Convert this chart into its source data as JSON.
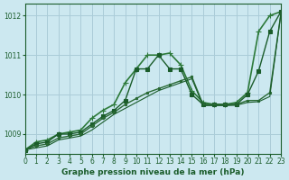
{
  "title": "Graphe pression niveau de la mer (hPa)",
  "background_color": "#cce8f0",
  "grid_color": "#aaccd8",
  "line_color_main": "#1a5c2a",
  "xlim": [
    0,
    23
  ],
  "ylim": [
    1008.5,
    1012.3
  ],
  "yticks": [
    1009,
    1010,
    1011,
    1012
  ],
  "xticks": [
    0,
    1,
    2,
    3,
    4,
    5,
    6,
    7,
    8,
    9,
    10,
    11,
    12,
    13,
    14,
    15,
    16,
    17,
    18,
    19,
    20,
    21,
    22,
    23
  ],
  "series": [
    {
      "x": [
        0,
        1,
        2,
        3,
        4,
        5,
        6,
        7,
        8,
        9,
        10,
        11,
        12,
        13,
        14,
        15,
        16,
        17,
        18,
        19,
        20,
        21,
        22,
        23
      ],
      "y": [
        1008.6,
        1008.8,
        1008.85,
        1009.0,
        1009.05,
        1009.1,
        1009.4,
        1009.6,
        1009.75,
        1010.3,
        1010.65,
        1011.0,
        1011.0,
        1011.05,
        1010.75,
        1010.1,
        1009.8,
        1009.75,
        1009.75,
        1009.8,
        1010.05,
        1011.6,
        1012.0,
        1012.1
      ],
      "color": "#2d7a3a",
      "linewidth": 1.2,
      "marker": "+",
      "markersize": 5
    },
    {
      "x": [
        0,
        1,
        2,
        3,
        4,
        5,
        6,
        7,
        8,
        9,
        10,
        11,
        12,
        13,
        14,
        15,
        16,
        17,
        18,
        19,
        20,
        21,
        22,
        23
      ],
      "y": [
        1008.6,
        1008.75,
        1008.8,
        1009.0,
        1009.0,
        1009.05,
        1009.25,
        1009.45,
        1009.6,
        1009.85,
        1010.65,
        1010.65,
        1011.0,
        1010.65,
        1010.65,
        1010.0,
        1009.75,
        1009.75,
        1009.75,
        1009.75,
        1010.0,
        1010.6,
        1011.6,
        1012.1
      ],
      "color": "#1a5c2a",
      "linewidth": 1.0,
      "marker": "s",
      "markersize": 2.5
    },
    {
      "x": [
        0,
        1,
        2,
        3,
        4,
        5,
        6,
        7,
        8,
        9,
        10,
        11,
        12,
        13,
        14,
        15,
        16,
        17,
        18,
        19,
        20,
        21,
        22,
        23
      ],
      "y": [
        1008.6,
        1008.7,
        1008.75,
        1008.9,
        1008.95,
        1009.0,
        1009.2,
        1009.4,
        1009.55,
        1009.75,
        1009.9,
        1010.05,
        1010.15,
        1010.25,
        1010.35,
        1010.45,
        1009.75,
        1009.75,
        1009.75,
        1009.75,
        1009.85,
        1009.85,
        1010.05,
        1012.05
      ],
      "color": "#2a6a35",
      "linewidth": 1.0,
      "marker": "s",
      "markersize": 2.0
    },
    {
      "x": [
        0,
        1,
        2,
        3,
        4,
        5,
        6,
        7,
        8,
        9,
        10,
        11,
        12,
        13,
        14,
        15,
        16,
        17,
        18,
        19,
        20,
        21,
        22,
        23
      ],
      "y": [
        1008.6,
        1008.65,
        1008.7,
        1008.85,
        1008.9,
        1008.95,
        1009.1,
        1009.3,
        1009.5,
        1009.65,
        1009.8,
        1009.95,
        1010.1,
        1010.2,
        1010.3,
        1010.4,
        1009.72,
        1009.72,
        1009.72,
        1009.73,
        1009.8,
        1009.82,
        1009.95,
        1012.05
      ],
      "color": "#1a5c2a",
      "linewidth": 0.8,
      "marker": null,
      "markersize": 0
    }
  ]
}
